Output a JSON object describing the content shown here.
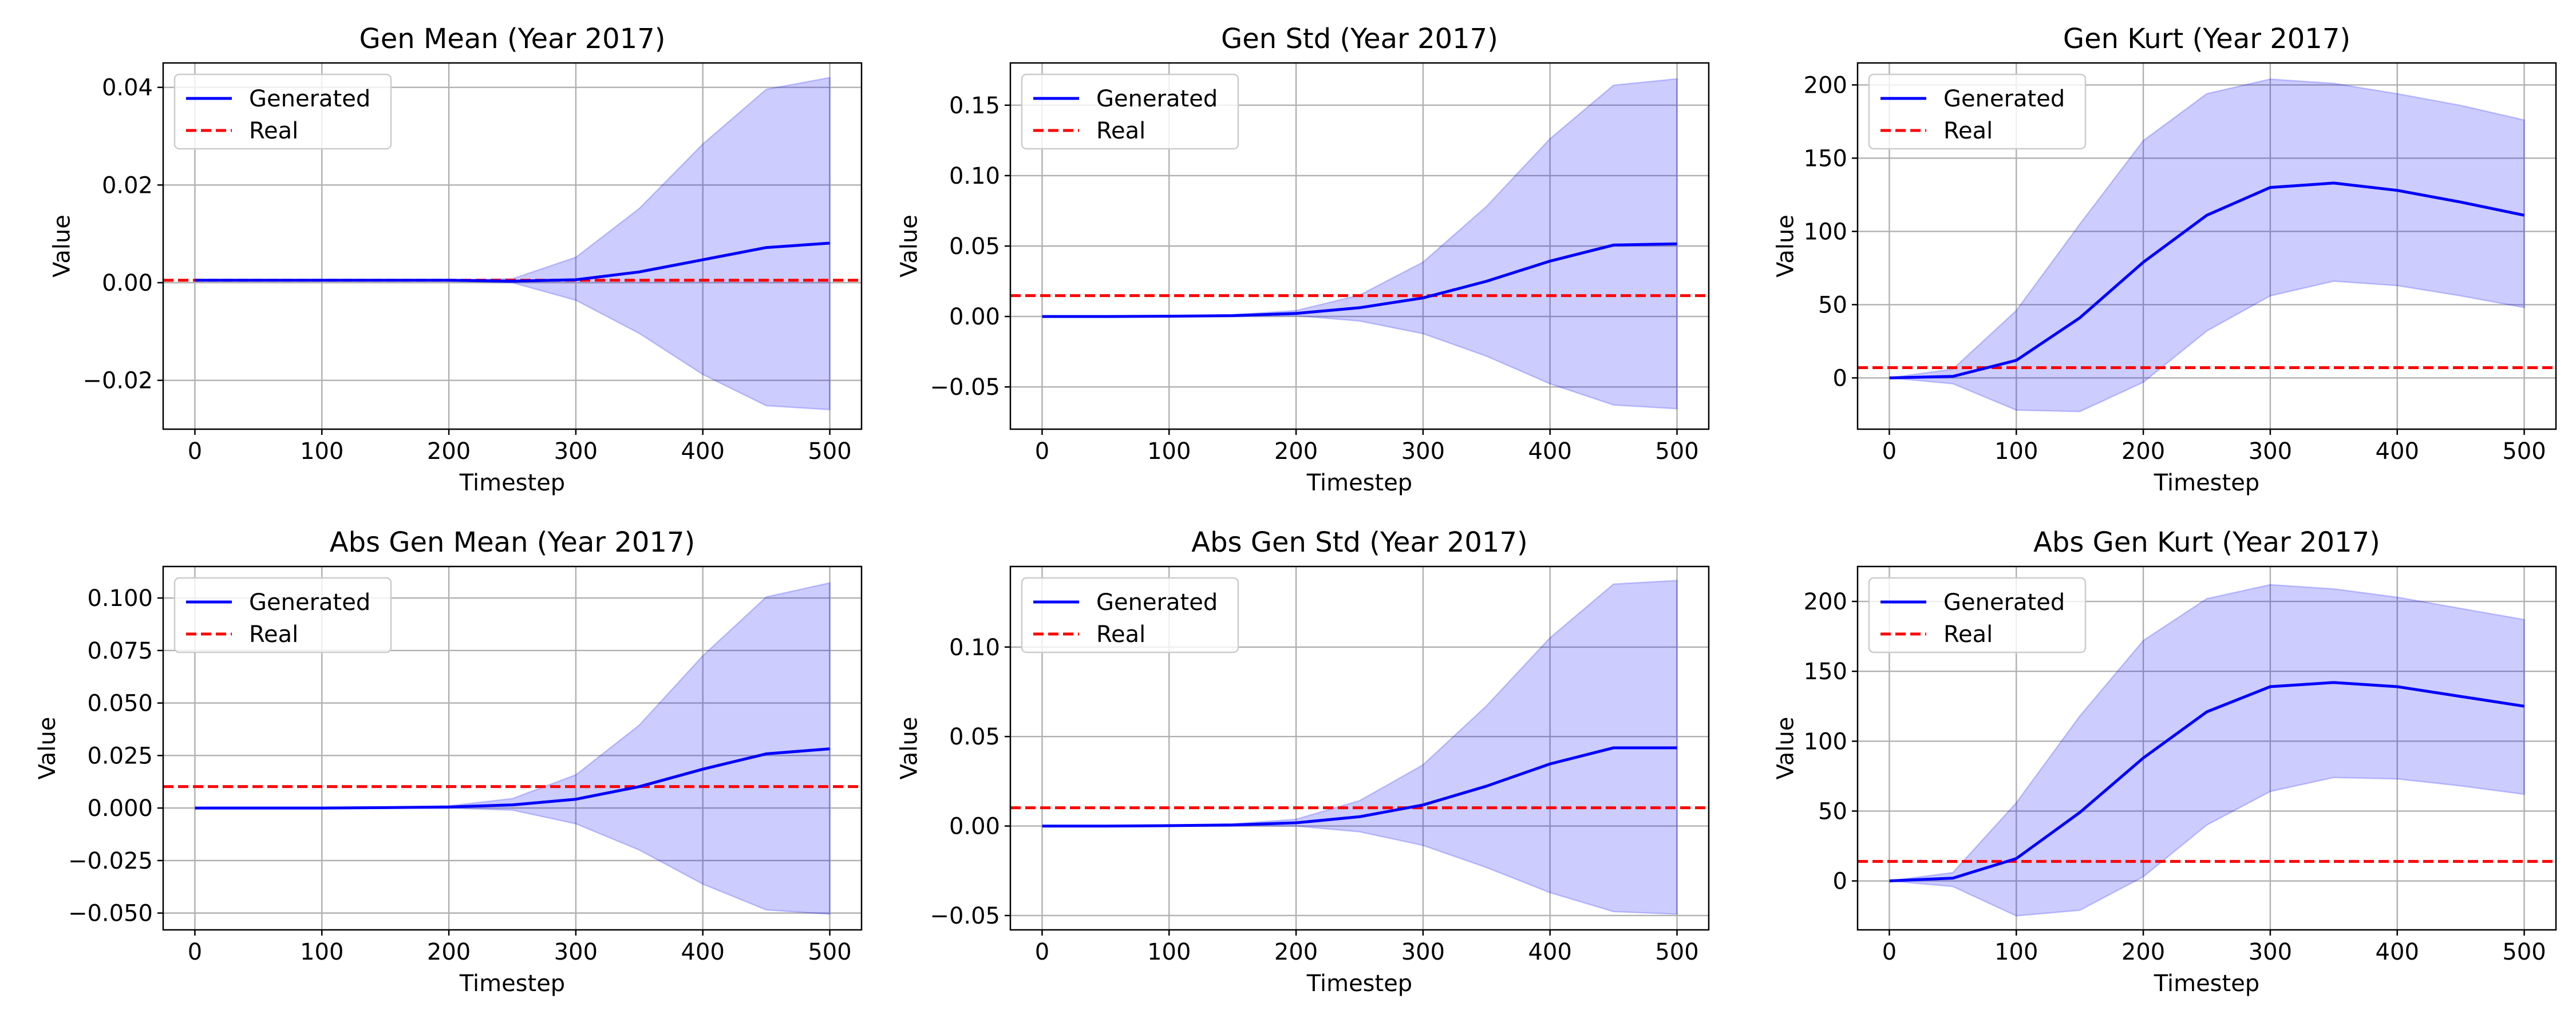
{
  "chart_data": [
    {
      "type": "line",
      "title": "Gen Mean (Year 2017)",
      "xlabel": "Timestep",
      "ylabel": "Value",
      "xlim": [
        -25,
        525
      ],
      "ylim": [
        -0.03,
        0.045
      ],
      "xticks": [
        0,
        100,
        200,
        300,
        400,
        500
      ],
      "yticks": [
        -0.02,
        0.0,
        0.02,
        0.04
      ],
      "ytick_labels": [
        "−0.02",
        "0.00",
        "0.02",
        "0.04"
      ],
      "grid": true,
      "legend_position": "upper left",
      "x": [
        0,
        50,
        100,
        150,
        200,
        250,
        300,
        350,
        400,
        450,
        500
      ],
      "series": [
        {
          "name": "Generated",
          "color": "#0000ff",
          "style": "solid",
          "values": [
            0.0005,
            0.0005,
            0.0005,
            0.0005,
            0.0005,
            0.0003,
            0.0006,
            0.0022,
            0.0047,
            0.0072,
            0.0081
          ],
          "band_lower": [
            0.0005,
            0.0005,
            0.0005,
            0.0005,
            0.0004,
            0.0,
            -0.0036,
            -0.0104,
            -0.0188,
            -0.0252,
            -0.026
          ],
          "band_upper": [
            0.0005,
            0.0005,
            0.0005,
            0.0005,
            0.0006,
            0.0008,
            0.0052,
            0.0152,
            0.0284,
            0.0396,
            0.042
          ]
        },
        {
          "name": "Real",
          "color": "#ff0000",
          "style": "dashed",
          "constant": 0.0005
        }
      ]
    },
    {
      "type": "line",
      "title": "Gen Std (Year 2017)",
      "xlabel": "Timestep",
      "ylabel": "Value",
      "xlim": [
        -25,
        525
      ],
      "ylim": [
        -0.08,
        0.18
      ],
      "xticks": [
        0,
        100,
        200,
        300,
        400,
        500
      ],
      "yticks": [
        -0.05,
        0.0,
        0.05,
        0.1,
        0.15
      ],
      "ytick_labels": [
        "−0.05",
        "0.00",
        "0.05",
        "0.10",
        "0.15"
      ],
      "grid": true,
      "legend_position": "upper left",
      "x": [
        0,
        50,
        100,
        150,
        200,
        250,
        300,
        350,
        400,
        450,
        500
      ],
      "series": [
        {
          "name": "Generated",
          "color": "#0000ff",
          "style": "solid",
          "values": [
            0.0,
            0.0,
            0.0002,
            0.0006,
            0.0022,
            0.0062,
            0.0132,
            0.025,
            0.0393,
            0.0507,
            0.0516
          ],
          "band_lower": [
            0.0,
            0.0,
            0.0,
            0.0002,
            0.0006,
            -0.0032,
            -0.0122,
            -0.0282,
            -0.0478,
            -0.0628,
            -0.0655
          ],
          "band_upper": [
            0.0,
            0.0,
            0.0004,
            0.0012,
            0.0042,
            0.0152,
            0.0386,
            0.0782,
            0.1262,
            0.1642,
            0.1687
          ]
        },
        {
          "name": "Real",
          "color": "#ff0000",
          "style": "dashed",
          "constant": 0.0148
        }
      ]
    },
    {
      "type": "line",
      "title": "Gen Kurt (Year 2017)",
      "xlabel": "Timestep",
      "ylabel": "Value",
      "xlim": [
        -25,
        525
      ],
      "ylim": [
        -35,
        215
      ],
      "xticks": [
        0,
        100,
        200,
        300,
        400,
        500
      ],
      "yticks": [
        0,
        50,
        100,
        150,
        200
      ],
      "ytick_labels": [
        "0",
        "50",
        "100",
        "150",
        "200"
      ],
      "grid": true,
      "legend_position": "upper left",
      "x": [
        0,
        50,
        100,
        150,
        200,
        250,
        300,
        350,
        400,
        450,
        500
      ],
      "series": [
        {
          "name": "Generated",
          "color": "#0000ff",
          "style": "solid",
          "values": [
            0,
            1,
            12,
            41,
            79,
            111,
            130,
            133,
            128,
            120,
            111
          ],
          "band_lower": [
            0,
            -4,
            -22,
            -23,
            -3,
            32,
            56,
            66,
            63,
            56,
            48
          ],
          "band_upper": [
            0,
            6,
            46,
            105,
            162,
            194,
            204,
            201,
            194,
            186,
            176
          ]
        },
        {
          "name": "Real",
          "color": "#ff0000",
          "style": "dashed",
          "constant": 7
        }
      ]
    },
    {
      "type": "line",
      "title": "Abs Gen Mean (Year 2017)",
      "xlabel": "Timestep",
      "ylabel": "Value",
      "xlim": [
        -25,
        525
      ],
      "ylim": [
        -0.058,
        0.115
      ],
      "xticks": [
        0,
        100,
        200,
        300,
        400,
        500
      ],
      "yticks": [
        -0.05,
        -0.025,
        0.0,
        0.025,
        0.05,
        0.075,
        0.1
      ],
      "ytick_labels": [
        "−0.050",
        "−0.025",
        "0.000",
        "0.025",
        "0.050",
        "0.075",
        "0.100"
      ],
      "grid": true,
      "legend_position": "upper left",
      "x": [
        0,
        50,
        100,
        150,
        200,
        250,
        300,
        350,
        400,
        450,
        500
      ],
      "series": [
        {
          "name": "Generated",
          "color": "#0000ff",
          "style": "solid",
          "values": [
            0.0,
            0.0,
            0.0,
            0.0002,
            0.0005,
            0.0015,
            0.0042,
            0.0102,
            0.0185,
            0.0258,
            0.0282
          ],
          "band_lower": [
            0.0,
            0.0,
            0.0,
            0.0,
            0.0,
            -0.001,
            -0.0075,
            -0.02,
            -0.0362,
            -0.0485,
            -0.0505
          ],
          "band_upper": [
            0.0,
            0.0,
            0.0,
            0.0004,
            0.001,
            0.0045,
            0.0158,
            0.0395,
            0.0725,
            0.1005,
            0.1072
          ]
        },
        {
          "name": "Real",
          "color": "#ff0000",
          "style": "dashed",
          "constant": 0.0102
        }
      ]
    },
    {
      "type": "line",
      "title": "Abs Gen Std (Year 2017)",
      "xlabel": "Timestep",
      "ylabel": "Value",
      "xlim": [
        -25,
        525
      ],
      "ylim": [
        -0.058,
        0.145
      ],
      "xticks": [
        0,
        100,
        200,
        300,
        400,
        500
      ],
      "yticks": [
        -0.05,
        0.0,
        0.05,
        0.1
      ],
      "ytick_labels": [
        "−0.05",
        "0.00",
        "0.05",
        "0.10"
      ],
      "grid": true,
      "legend_position": "upper left",
      "x": [
        0,
        50,
        100,
        150,
        200,
        250,
        300,
        350,
        400,
        450,
        500
      ],
      "series": [
        {
          "name": "Generated",
          "color": "#0000ff",
          "style": "solid",
          "values": [
            0.0,
            0.0,
            0.0002,
            0.0006,
            0.0018,
            0.0052,
            0.0118,
            0.0223,
            0.0347,
            0.0437,
            0.0437
          ],
          "band_lower": [
            0.0,
            0.0,
            0.0,
            0.0002,
            0.0,
            -0.0032,
            -0.0108,
            -0.0232,
            -0.0372,
            -0.0478,
            -0.0492
          ],
          "band_upper": [
            0.0,
            0.0,
            0.0004,
            0.0012,
            0.0038,
            0.0142,
            0.0342,
            0.0672,
            0.1052,
            0.1352,
            0.1372
          ]
        },
        {
          "name": "Real",
          "color": "#ff0000",
          "style": "dashed",
          "constant": 0.0102
        }
      ]
    },
    {
      "type": "line",
      "title": "Abs Gen Kurt (Year 2017)",
      "xlabel": "Timestep",
      "ylabel": "Value",
      "xlim": [
        -25,
        525
      ],
      "ylim": [
        -35,
        225
      ],
      "xticks": [
        0,
        100,
        200,
        300,
        400,
        500
      ],
      "yticks": [
        0,
        50,
        100,
        150,
        200
      ],
      "ytick_labels": [
        "0",
        "50",
        "100",
        "150",
        "200"
      ],
      "grid": true,
      "legend_position": "upper left",
      "x": [
        0,
        50,
        100,
        150,
        200,
        250,
        300,
        350,
        400,
        450,
        500
      ],
      "series": [
        {
          "name": "Generated",
          "color": "#0000ff",
          "style": "solid",
          "values": [
            0,
            2,
            16,
            49,
            88,
            121,
            139,
            142,
            139,
            132,
            125
          ],
          "band_lower": [
            0,
            -4,
            -25,
            -21,
            3,
            40,
            64,
            74,
            73,
            68,
            62
          ],
          "band_upper": [
            0,
            6,
            56,
            118,
            172,
            202,
            212,
            209,
            203,
            195,
            187
          ]
        },
        {
          "name": "Real",
          "color": "#ff0000",
          "style": "dashed",
          "constant": 14
        }
      ]
    }
  ]
}
